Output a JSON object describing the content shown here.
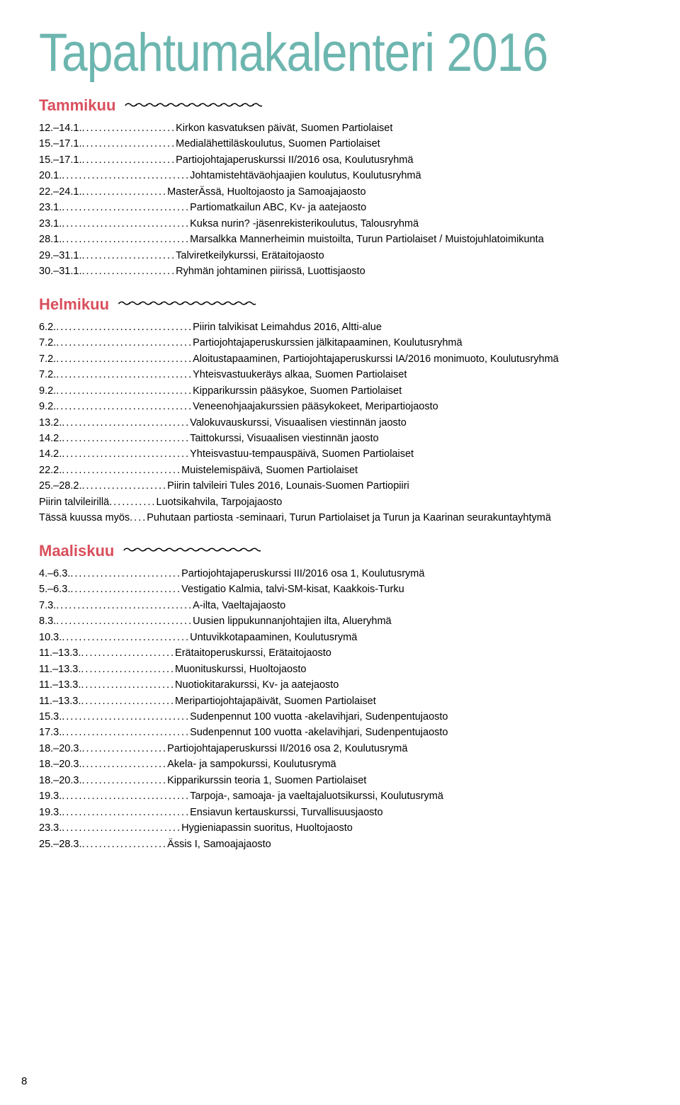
{
  "title": "Tapahtumakalenteri 2016",
  "page_number": "8",
  "wavy_pattern": "〜〜〜〜〜〜〜〜〜〜〜〜〜",
  "short_dots": "...........",
  "colors": {
    "title": "#6db6b0",
    "month": "#d94f5c",
    "text": "#000000",
    "background": "#ffffff"
  },
  "months": [
    {
      "name": "Tammikuu",
      "events": [
        {
          "date": "12.–14.1.",
          "dots": "......................",
          "desc": "Kirkon kasvatuksen päivät, Suomen Partiolaiset"
        },
        {
          "date": "15.–17.1.",
          "dots": "......................",
          "desc": "Medialähettiläskoulutus, Suomen Partiolaiset"
        },
        {
          "date": "15.–17.1.",
          "dots": "......................",
          "desc": "Partiojohtajaperuskurssi II/2016 osa, Koulutusryhmä"
        },
        {
          "date": "20.1.",
          "dots": "..............................",
          "desc": "Johtamistehtäväohjaajien koulutus, Koulutusryhmä"
        },
        {
          "date": "22.–24.1.",
          "dots": "....................",
          "desc": "MasterÄssä, Huoltojaosto ja Samoajajaosto"
        },
        {
          "date": "23.1.",
          "dots": "..............................",
          "desc": "Partiomatkailun ABC, Kv- ja aatejaosto"
        },
        {
          "date": "23.1.",
          "dots": "..............................",
          "desc": "Kuksa nurin? -jäsenrekisterikoulutus, Talousryhmä"
        },
        {
          "date": "28.1.",
          "dots": "..............................",
          "desc": "Marsalkka Mannerheimin muistoilta, Turun Partiolaiset / Muistojuhlatoimikunta"
        },
        {
          "date": "29.–31.1.",
          "dots": "......................",
          "desc": "Talviretkeilykurssi, Erätaitojaosto"
        },
        {
          "date": "30.–31.1.",
          "dots": "......................",
          "desc": "Ryhmän johtaminen piirissä, Luottisjaosto"
        }
      ]
    },
    {
      "name": "Helmikuu",
      "events": [
        {
          "date": "6.2.",
          "dots": "................................",
          "desc": "Piirin talvikisat Leimahdus 2016, Altti-alue"
        },
        {
          "date": "7.2.",
          "dots": "................................",
          "desc": "Partiojohtajaperuskurssien jälkitapaaminen, Koulutusryhmä"
        },
        {
          "date": "7.2.",
          "dots": "................................",
          "desc": "Aloitustapaaminen, Partiojohtajaperuskurssi IA/2016 monimuoto, Koulutusryhmä"
        },
        {
          "date": "7.2.",
          "dots": "................................",
          "desc": "Yhteisvastuukeräys alkaa, Suomen Partiolaiset"
        },
        {
          "date": "9.2.",
          "dots": "................................",
          "desc": "Kipparikurssin pääsykoe, Suomen Partiolaiset"
        },
        {
          "date": "9.2.",
          "dots": "................................",
          "desc": "Veneenohjaajakurssien pääsykokeet, Meripartiojaosto"
        },
        {
          "date": "13.2.",
          "dots": "..............................",
          "desc": "Valokuvauskurssi, Visuaalisen viestinnän jaosto"
        },
        {
          "date": "14.2.",
          "dots": "..............................",
          "desc": "Taittokurssi, Visuaalisen viestinnän jaosto"
        },
        {
          "date": "14.2.",
          "dots": "..............................",
          "desc": "Yhteisvastuu-tempauspäivä, Suomen Partiolaiset"
        },
        {
          "date": "22.2.",
          "dots": "............................",
          "desc": "Muistelemispäivä, Suomen Partiolaiset"
        },
        {
          "date": "25.–28.2.",
          "dots": "....................",
          "desc": "Piirin talvileiri Tules 2016, Lounais-Suomen Partiopiiri"
        },
        {
          "date": "Piirin talvileirillä",
          "dots": "...........",
          "desc": "Luotsikahvila, Tarpojajaosto"
        },
        {
          "date": "Tässä kuussa myös",
          "dots": "....",
          "desc": "Puhutaan partiosta -seminaari, Turun Partiolaiset ja Turun ja Kaarinan seurakuntayhtymä"
        }
      ]
    },
    {
      "name": "Maaliskuu",
      "events": [
        {
          "date": "4.–6.3.",
          "dots": "..........................",
          "desc": "Partiojohtajaperuskurssi III/2016 osa 1, Koulutusrymä"
        },
        {
          "date": "5.–6.3.",
          "dots": "..........................",
          "desc": "Vestigatio Kalmia, talvi-SM-kisat, Kaakkois-Turku"
        },
        {
          "date": "7.3.",
          "dots": "................................",
          "desc": "A-ilta, Vaeltajajaosto"
        },
        {
          "date": "8.3.",
          "dots": "................................",
          "desc": "Uusien lippukunnanjohtajien ilta, Alueryhmä"
        },
        {
          "date": "10.3.",
          "dots": "..............................",
          "desc": "Untuvikkotapaaminen, Koulutusrymä"
        },
        {
          "date": "11.–13.3.",
          "dots": "......................",
          "desc": "Erätaitoperuskurssi, Erätaitojaosto"
        },
        {
          "date": "11.–13.3.",
          "dots": "......................",
          "desc": "Muonituskurssi, Huoltojaosto"
        },
        {
          "date": "11.–13.3.",
          "dots": "......................",
          "desc": "Nuotiokitarakurssi, Kv- ja aatejaosto"
        },
        {
          "date": "11.–13.3.",
          "dots": "......................",
          "desc": "Meripartiojohtajapäivät, Suomen Partiolaiset"
        },
        {
          "date": "15.3.",
          "dots": "..............................",
          "desc": "Sudenpennut 100 vuotta -akelavihjari, Sudenpentujaosto"
        },
        {
          "date": "17.3.",
          "dots": "..............................",
          "desc": "Sudenpennut 100 vuotta -akelavihjari, Sudenpentujaosto"
        },
        {
          "date": "18.–20.3.",
          "dots": "....................",
          "desc": "Partiojohtajaperuskurssi II/2016 osa 2, Koulutusrymä"
        },
        {
          "date": "18.–20.3.",
          "dots": "....................",
          "desc": "Akela- ja sampokurssi, Koulutusrymä"
        },
        {
          "date": "18.–20.3.",
          "dots": "....................",
          "desc": "Kipparikurssin teoria 1, Suomen Partiolaiset"
        },
        {
          "date": "19.3.",
          "dots": "..............................",
          "desc": "Tarpoja-, samoaja- ja vaeltajaluotsikurssi, Koulutusrymä"
        },
        {
          "date": "19.3.",
          "dots": "..............................",
          "desc": "Ensiavun kertauskurssi, Turvallisuusjaosto"
        },
        {
          "date": "23.3.",
          "dots": "............................",
          "desc": "Hygieniapassin suoritus, Huoltojaosto"
        },
        {
          "date": "25.–28.3.",
          "dots": "....................",
          "desc": "Ässis I, Samoajajaosto"
        }
      ]
    }
  ]
}
